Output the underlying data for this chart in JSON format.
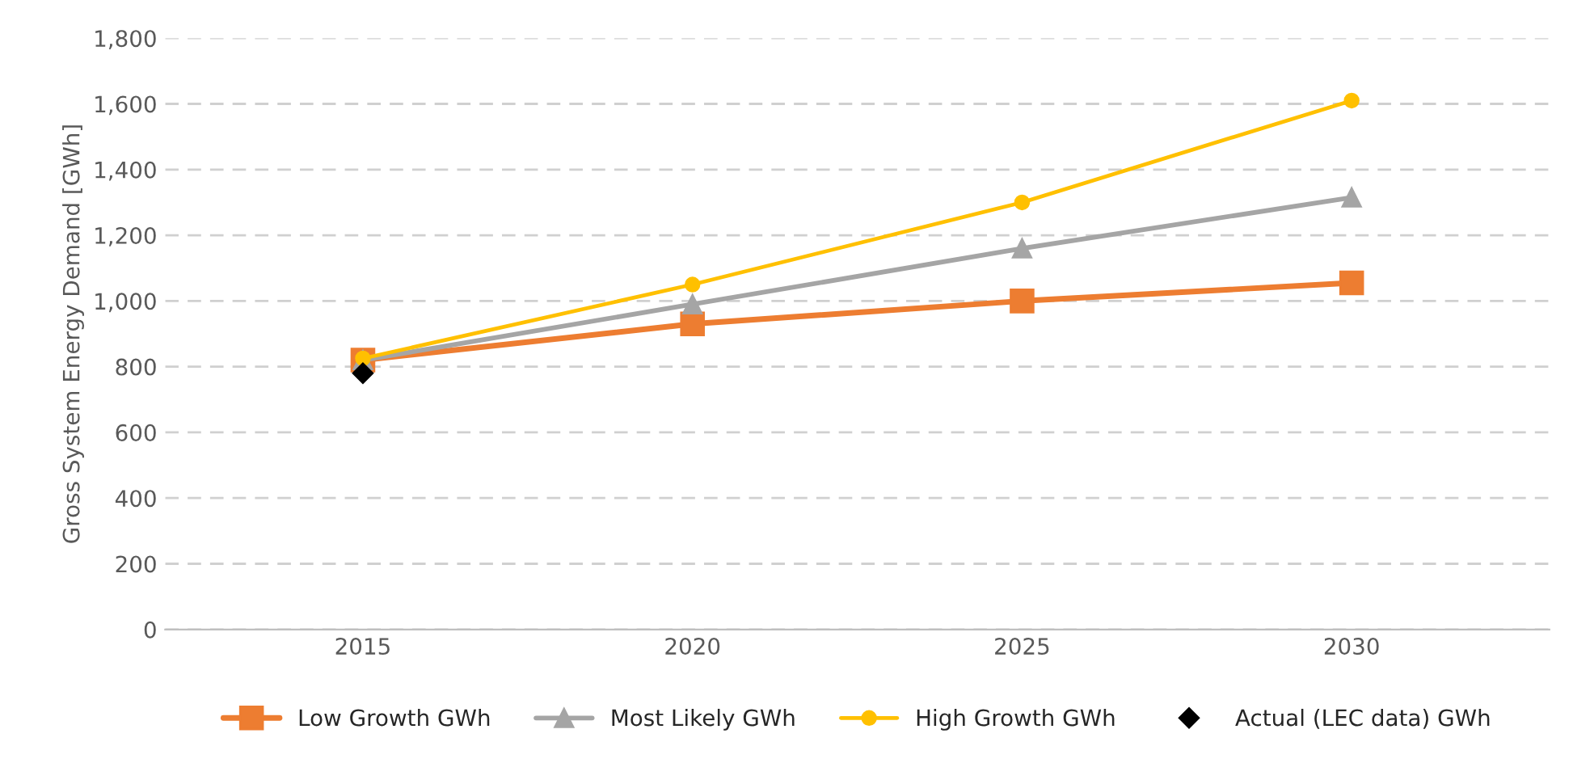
{
  "chart_data": {
    "type": "line",
    "ylabel": "Gross System Energy Demand [GWh]",
    "categories": [
      "2015",
      "2020",
      "2025",
      "2030"
    ],
    "series": [
      {
        "name": "Low Growth GWh",
        "color": "#ed7d31",
        "values": [
          820,
          930,
          1000,
          1055
        ],
        "marker": "square"
      },
      {
        "name": "Most Likely GWh",
        "color": "#a5a5a5",
        "values": [
          820,
          990,
          1160,
          1315
        ],
        "marker": "triangle"
      },
      {
        "name": "High Growth GWh",
        "color": "#ffc000",
        "values": [
          825,
          1050,
          1300,
          1610
        ],
        "marker": "circle"
      },
      {
        "name": "Actual (LEC data) GWh",
        "color": "#000000",
        "values": [
          780,
          null,
          null,
          null
        ],
        "type": "scatter",
        "marker": "diamond"
      }
    ],
    "ylim": [
      0,
      1800
    ],
    "yticks": [
      {
        "value": 0,
        "label": "0"
      },
      {
        "value": 200,
        "label": "200"
      },
      {
        "value": 400,
        "label": "400"
      },
      {
        "value": 600,
        "label": "600"
      },
      {
        "value": 800,
        "label": "800"
      },
      {
        "value": 1000,
        "label": "1,000"
      },
      {
        "value": 1200,
        "label": "1,200"
      },
      {
        "value": 1400,
        "label": "1,400"
      },
      {
        "value": 1600,
        "label": "1,600"
      },
      {
        "value": 1800,
        "label": "1,800"
      }
    ],
    "grid": "y",
    "legend": "bottom",
    "line_style": "solid"
  }
}
